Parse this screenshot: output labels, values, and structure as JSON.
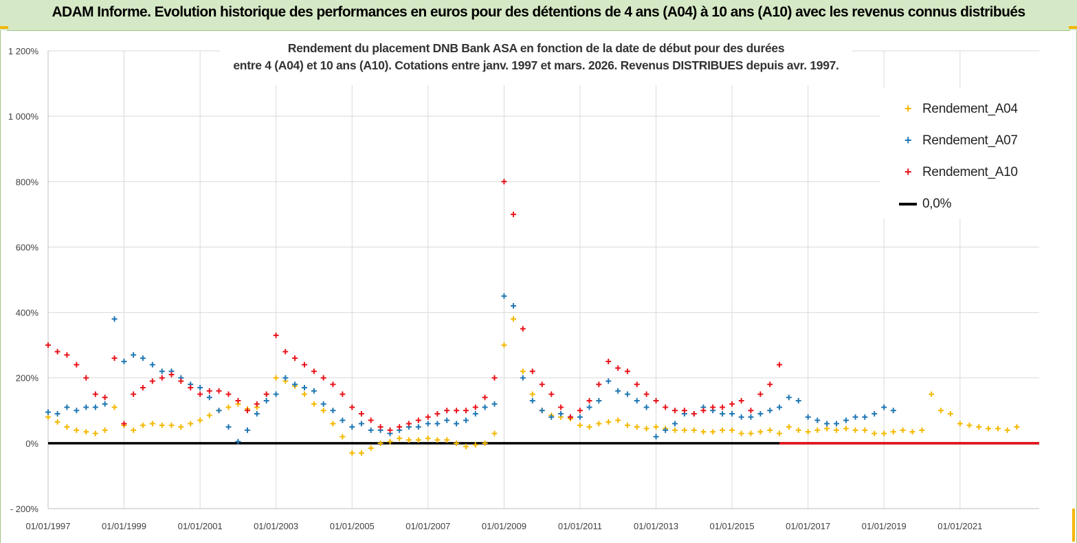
{
  "header": {
    "title": "ADAM Informe. Evolution historique des performances en euros pour des détentions de 4 ans (A04) à 10 ans (A10) avec les revenus connus distribués"
  },
  "colors": {
    "banner_bg": "#d6e9c6",
    "a04": "#f5b800",
    "a07": "#1f77b4",
    "a10": "#e8141b",
    "zero_line": "#000000",
    "grid": "#d9d9d9"
  },
  "chart_data": {
    "type": "scatter",
    "title": "Rendement du placement DNB Bank ASA en fonction de la date de début pour des durées",
    "subtitle": "entre 4 (A04) et 10 ans (A10). Cotations entre janv. 1997 et mars. 2026. Revenus DISTRIBUES depuis avr. 1997.",
    "xlabel": "",
    "ylabel": "",
    "xlim": [
      "1997-01-01",
      "2023-02-01"
    ],
    "ylim": [
      -200,
      1200
    ],
    "y_ticks": [
      -200,
      0,
      200,
      400,
      600,
      800,
      1000,
      1200
    ],
    "y_tick_labels": [
      "- 200%",
      "0%",
      "200%",
      "400%",
      "600%",
      "800%",
      "1 000%",
      "1 200%"
    ],
    "x_ticks": [
      "1997-01-01",
      "1999-01-01",
      "2001-01-01",
      "2003-01-01",
      "2005-01-01",
      "2007-01-01",
      "2009-01-01",
      "2011-01-01",
      "2013-01-01",
      "2015-01-01",
      "2017-01-01",
      "2019-01-01",
      "2021-01-01"
    ],
    "x_tick_labels": [
      "01/01/1997",
      "01/01/1999",
      "01/01/2001",
      "01/01/2003",
      "01/01/2005",
      "01/01/2007",
      "01/01/2009",
      "01/01/2011",
      "01/01/2013",
      "01/01/2015",
      "01/01/2017",
      "01/01/2019",
      "01/01/2021"
    ],
    "grid": true,
    "legend_position": "top-right",
    "series": [
      {
        "name": "Rendement_A04",
        "color": "#f5b800",
        "x": [
          "1997-01-01",
          "1997-04-01",
          "1997-07-01",
          "1997-10-01",
          "1998-01-01",
          "1998-04-01",
          "1998-07-01",
          "1998-10-01",
          "1999-01-01",
          "1999-04-01",
          "1999-07-01",
          "1999-10-01",
          "2000-01-01",
          "2000-04-01",
          "2000-07-01",
          "2000-10-01",
          "2001-01-01",
          "2001-04-01",
          "2001-07-01",
          "2001-10-01",
          "2002-01-01",
          "2002-04-01",
          "2002-07-01",
          "2002-10-01",
          "2003-01-01",
          "2003-04-01",
          "2003-07-01",
          "2003-10-01",
          "2004-01-01",
          "2004-04-01",
          "2004-07-01",
          "2004-10-01",
          "2005-01-01",
          "2005-04-01",
          "2005-07-01",
          "2005-10-01",
          "2006-01-01",
          "2006-04-01",
          "2006-07-01",
          "2006-10-01",
          "2007-01-01",
          "2007-04-01",
          "2007-07-01",
          "2007-10-01",
          "2008-01-01",
          "2008-04-01",
          "2008-07-01",
          "2008-10-01",
          "2009-01-01",
          "2009-04-01",
          "2009-07-01",
          "2009-10-01",
          "2010-01-01",
          "2010-04-01",
          "2010-07-01",
          "2010-10-01",
          "2011-01-01",
          "2011-04-01",
          "2011-07-01",
          "2011-10-01",
          "2012-01-01",
          "2012-04-01",
          "2012-07-01",
          "2012-10-01",
          "2013-01-01",
          "2013-04-01",
          "2013-07-01",
          "2013-10-01",
          "2014-01-01",
          "2014-04-01",
          "2014-07-01",
          "2014-10-01",
          "2015-01-01",
          "2015-04-01",
          "2015-07-01",
          "2015-10-01",
          "2016-01-01",
          "2016-04-01",
          "2016-07-01",
          "2016-10-01",
          "2017-01-01",
          "2017-04-01",
          "2017-07-01",
          "2017-10-01",
          "2018-01-01",
          "2018-04-01",
          "2018-07-01",
          "2018-10-01",
          "2019-01-01",
          "2019-04-01",
          "2019-07-01",
          "2019-10-01",
          "2020-01-01",
          "2020-04-01",
          "2020-07-01",
          "2020-10-01",
          "2021-01-01",
          "2021-04-01",
          "2021-07-01",
          "2021-10-01",
          "2022-01-01",
          "2022-04-01",
          "2022-07-01"
        ],
        "values": [
          80,
          65,
          50,
          40,
          35,
          30,
          40,
          110,
          55,
          40,
          55,
          60,
          55,
          55,
          50,
          60,
          70,
          85,
          100,
          110,
          120,
          105,
          110,
          150,
          200,
          190,
          175,
          150,
          120,
          100,
          60,
          20,
          -30,
          -30,
          -15,
          0,
          5,
          15,
          10,
          10,
          15,
          10,
          10,
          0,
          -10,
          -5,
          0,
          30,
          300,
          380,
          220,
          150,
          100,
          85,
          80,
          75,
          55,
          50,
          60,
          65,
          70,
          55,
          50,
          45,
          50,
          45,
          40,
          40,
          40,
          35,
          35,
          40,
          40,
          30,
          30,
          35,
          40,
          30,
          50,
          40,
          35,
          40,
          45,
          40,
          45,
          40,
          40,
          30,
          30,
          35,
          40,
          35,
          40,
          150,
          100,
          90,
          60,
          55,
          50,
          45,
          45,
          40,
          50
        ]
      },
      {
        "name": "Rendement_A07",
        "color": "#1f77b4",
        "x": [
          "1997-01-01",
          "1997-04-01",
          "1997-07-01",
          "1997-10-01",
          "1998-01-01",
          "1998-04-01",
          "1998-07-01",
          "1998-10-01",
          "1999-01-01",
          "1999-04-01",
          "1999-07-01",
          "1999-10-01",
          "2000-01-01",
          "2000-04-01",
          "2000-07-01",
          "2000-10-01",
          "2001-01-01",
          "2001-04-01",
          "2001-07-01",
          "2001-10-01",
          "2002-01-01",
          "2002-04-01",
          "2002-07-01",
          "2002-10-01",
          "2003-01-01",
          "2003-04-01",
          "2003-07-01",
          "2003-10-01",
          "2004-01-01",
          "2004-04-01",
          "2004-07-01",
          "2004-10-01",
          "2005-01-01",
          "2005-04-01",
          "2005-07-01",
          "2005-10-01",
          "2006-01-01",
          "2006-04-01",
          "2006-07-01",
          "2006-10-01",
          "2007-01-01",
          "2007-04-01",
          "2007-07-01",
          "2007-10-01",
          "2008-01-01",
          "2008-04-01",
          "2008-07-01",
          "2008-10-01",
          "2009-01-01",
          "2009-04-01",
          "2009-07-01",
          "2009-10-01",
          "2010-01-01",
          "2010-04-01",
          "2010-07-01",
          "2010-10-01",
          "2011-01-01",
          "2011-04-01",
          "2011-07-01",
          "2011-10-01",
          "2012-01-01",
          "2012-04-01",
          "2012-07-01",
          "2012-10-01",
          "2013-01-01",
          "2013-04-01",
          "2013-07-01",
          "2013-10-01",
          "2014-01-01",
          "2014-04-01",
          "2014-07-01",
          "2014-10-01",
          "2015-01-01",
          "2015-04-01",
          "2015-07-01",
          "2015-10-01",
          "2016-01-01",
          "2016-04-01",
          "2016-07-01",
          "2016-10-01",
          "2017-01-01",
          "2017-04-01",
          "2017-07-01",
          "2017-10-01",
          "2018-01-01",
          "2018-04-01",
          "2018-07-01",
          "2018-10-01",
          "2019-01-01",
          "2019-04-01"
        ],
        "values": [
          95,
          90,
          110,
          100,
          110,
          110,
          120,
          380,
          250,
          270,
          260,
          240,
          220,
          220,
          200,
          180,
          170,
          140,
          100,
          50,
          5,
          40,
          90,
          130,
          150,
          200,
          180,
          170,
          160,
          120,
          100,
          70,
          50,
          60,
          40,
          40,
          30,
          40,
          50,
          50,
          60,
          60,
          70,
          60,
          70,
          90,
          110,
          120,
          450,
          420,
          200,
          130,
          100,
          80,
          90,
          80,
          80,
          110,
          130,
          190,
          160,
          150,
          130,
          110,
          20,
          40,
          60,
          90,
          90,
          110,
          100,
          90,
          90,
          80,
          80,
          90,
          100,
          110,
          140,
          130,
          80,
          70,
          60,
          60,
          70,
          80,
          80,
          90,
          110,
          100
        ]
      },
      {
        "name": "Rendement_A10",
        "color": "#e8141b",
        "x": [
          "1997-01-01",
          "1997-04-01",
          "1997-07-01",
          "1997-10-01",
          "1998-01-01",
          "1998-04-01",
          "1998-07-01",
          "1998-10-01",
          "1999-01-01",
          "1999-04-01",
          "1999-07-01",
          "1999-10-01",
          "2000-01-01",
          "2000-04-01",
          "2000-07-01",
          "2000-10-01",
          "2001-01-01",
          "2001-04-01",
          "2001-07-01",
          "2001-10-01",
          "2002-01-01",
          "2002-04-01",
          "2002-07-01",
          "2002-10-01",
          "2003-01-01",
          "2003-04-01",
          "2003-07-01",
          "2003-10-01",
          "2004-01-01",
          "2004-04-01",
          "2004-07-01",
          "2004-10-01",
          "2005-01-01",
          "2005-04-01",
          "2005-07-01",
          "2005-10-01",
          "2006-01-01",
          "2006-04-01",
          "2006-07-01",
          "2006-10-01",
          "2007-01-01",
          "2007-04-01",
          "2007-07-01",
          "2007-10-01",
          "2008-01-01",
          "2008-04-01",
          "2008-07-01",
          "2008-10-01",
          "2009-01-01",
          "2009-04-01",
          "2009-07-01",
          "2009-10-01",
          "2010-01-01",
          "2010-04-01",
          "2010-07-01",
          "2010-10-01",
          "2011-01-01",
          "2011-04-01",
          "2011-07-01",
          "2011-10-01",
          "2012-01-01",
          "2012-04-01",
          "2012-07-01",
          "2012-10-01",
          "2013-01-01",
          "2013-04-01",
          "2013-07-01",
          "2013-10-01",
          "2014-01-01",
          "2014-04-01",
          "2014-07-01",
          "2014-10-01",
          "2015-01-01",
          "2015-04-01",
          "2015-07-01",
          "2015-10-01",
          "2016-01-01",
          "2016-04-01"
        ],
        "values": [
          300,
          280,
          270,
          240,
          200,
          150,
          140,
          260,
          60,
          150,
          170,
          190,
          200,
          210,
          190,
          170,
          150,
          160,
          160,
          150,
          130,
          100,
          120,
          150,
          330,
          280,
          260,
          240,
          220,
          200,
          180,
          150,
          110,
          90,
          70,
          50,
          40,
          50,
          60,
          70,
          80,
          90,
          100,
          100,
          100,
          110,
          140,
          200,
          800,
          700,
          350,
          220,
          180,
          150,
          110,
          80,
          100,
          130,
          180,
          250,
          230,
          220,
          180,
          150,
          130,
          110,
          100,
          100,
          90,
          100,
          110,
          110,
          120,
          130,
          100,
          150,
          180,
          240
        ]
      },
      {
        "name": "0,0%",
        "color": "#000000",
        "x": [
          "1997-01-01",
          "2023-02-01"
        ],
        "values": [
          0,
          0
        ]
      }
    ]
  }
}
